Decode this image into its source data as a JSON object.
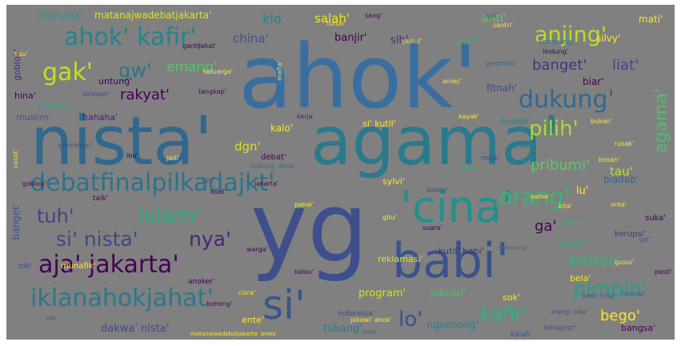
{
  "wordcloud": {
    "background": "#808080",
    "words": [
      {
        "text": "ahok'",
        "color": "#3b6ea0"
      },
      {
        "text": "nista'",
        "color": "#31688e"
      },
      {
        "text": "agama'",
        "color": "#2a7a8e"
      },
      {
        "text": "yg",
        "color": "#3e4f8c"
      },
      {
        "text": "'cina'",
        "color": "#21918c"
      },
      {
        "text": "babi'",
        "color": "#3b528b"
      },
      {
        "text": "si'",
        "color": "#39558c"
      },
      {
        "text": "debatfinalpilkadajkt'",
        "color": "#2c728e"
      },
      {
        "text": "iklanahokjahat'",
        "color": "#2a788e"
      },
      {
        "text": "ahok' kafir'",
        "color": "#25848e"
      },
      {
        "text": "aja' jakarta'",
        "color": "#440154"
      },
      {
        "text": "si' nista'",
        "color": "#3e4a89"
      },
      {
        "text": "tuh'",
        "color": "#414487"
      },
      {
        "text": "islam'",
        "color": "#29af7f"
      },
      {
        "text": "nya'",
        "color": "#482576"
      },
      {
        "text": "orang'",
        "color": "#35b779"
      },
      {
        "text": "pilih'",
        "color": "#a8db34"
      },
      {
        "text": "dukung'",
        "color": "#31688e"
      },
      {
        "text": "anjing'",
        "color": "#b5de2b"
      },
      {
        "text": "gak'",
        "color": "#c2df23"
      },
      {
        "text": "gw'",
        "color": "#2c728e"
      },
      {
        "text": "emang'",
        "color": "#52c569"
      },
      {
        "text": "rakyat'",
        "color": "#440154"
      },
      {
        "text": "banget'",
        "color": "#46327e"
      },
      {
        "text": "liat'",
        "color": "#3f4889"
      },
      {
        "text": "pribumi'",
        "color": "#5ec962"
      },
      {
        "text": "kristen'",
        "color": "#35b779"
      },
      {
        "text": "pimpin'",
        "color": "#1fa088"
      },
      {
        "text": "kafir'",
        "color": "#2db27d"
      },
      {
        "text": "bego'",
        "color": "#fde725"
      },
      {
        "text": "lo'",
        "color": "#3b528b"
      },
      {
        "text": "program'",
        "color": "#d8e219"
      },
      {
        "text": "jokowi'",
        "color": "#48c16e"
      },
      {
        "text": "ngomong'",
        "color": "#26828e"
      },
      {
        "text": "dakwa' nista'",
        "color": "#3e4a89"
      },
      {
        "text": "tukang'",
        "color": "#2a788e"
      },
      {
        "text": "salah'",
        "color": "#f2e51d"
      },
      {
        "text": "klo'",
        "color": "#26828e"
      },
      {
        "text": "china'",
        "color": "#3b528b"
      },
      {
        "text": "manusia'",
        "color": "#1f9a8a"
      },
      {
        "text": "matanajwadebatjakarta'",
        "color": "#dde318"
      },
      {
        "text": "sih'",
        "color": "#482878"
      },
      {
        "text": "anti'",
        "color": "#5ec962"
      },
      {
        "text": "banjir'",
        "color": "#440154"
      },
      {
        "text": "fitnah'",
        "color": "#3e4a89"
      },
      {
        "text": "biar'",
        "color": "#440154"
      },
      {
        "text": "dgn'",
        "color": "#d5e21a"
      },
      {
        "text": "kalo'",
        "color": "#fde725"
      },
      {
        "text": "debat'",
        "color": "#440154"
      },
      {
        "text": "tau'",
        "color": "#bddf26"
      },
      {
        "text": "lu'",
        "color": "#fde725"
      },
      {
        "text": "ga'",
        "color": "#440154"
      },
      {
        "text": "biadab'",
        "color": "#31688e"
      },
      {
        "text": "bela'",
        "color": "#fde725"
      },
      {
        "text": "reklamasi'",
        "color": "#dde318"
      },
      {
        "text": "kutil' babi'",
        "color": "#46327e"
      },
      {
        "text": "hina'",
        "color": "#440154"
      },
      {
        "text": "pilkada'",
        "color": "#22a884"
      },
      {
        "text": "hahaha'",
        "color": "#481f70"
      },
      {
        "text": "muslim'",
        "color": "#3b528b"
      },
      {
        "text": "si' kutil'",
        "color": "#fde725"
      },
      {
        "text": "bodoh'",
        "color": "#25848e"
      },
      {
        "text": "otak'",
        "color": "#2a788e"
      },
      {
        "text": "sylvi'",
        "color": "#fde725"
      },
      {
        "text": "munafik'",
        "color": "#fde725"
      },
      {
        "text": "indonesia'",
        "color": "#3e4a89"
      },
      {
        "text": "ente'",
        "color": "#fde725"
      },
      {
        "text": "bangsa'",
        "color": "#440154"
      },
      {
        "text": "suka'",
        "color": "#440154"
      },
      {
        "text": "islami'",
        "color": "#29af7f"
      },
      {
        "text": "korupsi'",
        "color": "#46327e"
      },
      {
        "text": "kampung'",
        "color": "#2a788e"
      },
      {
        "text": "silvy'",
        "color": "#fde725"
      },
      {
        "text": "mati'",
        "color": "#fde725"
      },
      {
        "text": "untung'",
        "color": "#440154"
      },
      {
        "text": "goblok'",
        "color": "#482878"
      },
      {
        "text": "agama'",
        "color": "#4ac16d"
      },
      {
        "text": "banget'",
        "color": "#3b528b"
      },
      {
        "text": "anak'",
        "color": "#2db27d"
      },
      {
        "text": "anoker'",
        "color": "#440154"
      },
      {
        "text": "koruptor'",
        "color": "#3e4a89"
      },
      {
        "text": "kalah'",
        "color": "#3b528b"
      },
      {
        "text": "tdk'",
        "color": "#3b528b"
      },
      {
        "text": "taik'",
        "color": "#440154"
      },
      {
        "text": "milik'",
        "color": "#3e4a89"
      },
      {
        "text": "onta'",
        "color": "#fde725"
      },
      {
        "text": "sok'",
        "color": "#fde725"
      },
      {
        "text": "matanajwadebatjakarta' anies'",
        "color": "#fde725"
      },
      {
        "text": "kerja'",
        "color": "#481f70"
      },
      {
        "text": "sampah'",
        "color": "#3e4a89"
      },
      {
        "text": "tangkap'",
        "color": "#440154"
      },
      {
        "text": "gerombol'",
        "color": "#31688e"
      },
      {
        "text": "hormat'",
        "color": "#31688e"
      },
      {
        "text": "cisra'",
        "color": "#fde725"
      },
      {
        "text": "santri'",
        "color": "#fde725"
      },
      {
        "text": "saya'",
        "color": "#2db27d"
      },
      {
        "text": "sang'",
        "color": "#440154"
      },
      {
        "text": "ganti'",
        "color": "#440154"
      },
      {
        "text": "pukul'",
        "color": "#fde725"
      },
      {
        "text": "lindung'",
        "color": "#440154"
      },
      {
        "text": "keluarga'",
        "color": "#fde725"
      },
      {
        "text": "jahat'",
        "color": "#440154"
      },
      {
        "text": "kau'",
        "color": "#fde725"
      },
      {
        "text": "kpk'",
        "color": "#31688e"
      },
      {
        "text": "mafia'",
        "color": "#fde725"
      },
      {
        "text": "suara'",
        "color": "#440154"
      },
      {
        "text": "spt'",
        "color": "#3e4a89"
      },
      {
        "text": "turun'",
        "color": "#fde725"
      },
      {
        "text": "agama'",
        "color": "#35b779"
      },
      {
        "text": "kayak'",
        "color": "#fde725"
      },
      {
        "text": "rusak'",
        "color": "#fde725"
      },
      {
        "text": "bilang'",
        "color": "#3e4a89"
      },
      {
        "text": "cocot'",
        "color": "#fde725"
      },
      {
        "text": "warga'",
        "color": "#440154"
      },
      {
        "text": "pakai'",
        "color": "#fde725"
      },
      {
        "text": "dukung' ahok'",
        "color": "#31688e"
      },
      {
        "text": "bukan'",
        "color": "#fde725"
      },
      {
        "text": "pemimpin'",
        "color": "#3e4a89"
      },
      {
        "text": "jadi'",
        "color": "#fde725"
      },
      {
        "text": "ibu'",
        "color": "#440154"
      },
      {
        "text": "kita'",
        "color": "#fde725"
      },
      {
        "text": "manuver'",
        "color": "#31688e"
      },
      {
        "text": "orang' cina'",
        "color": "#3b528b"
      },
      {
        "text": "gusur'",
        "color": "#fde725"
      },
      {
        "text": "goblog'",
        "color": "#440154"
      },
      {
        "text": "bosan'",
        "color": "#fde725"
      },
      {
        "text": "pasti'",
        "color": "#440154"
      },
      {
        "text": "nih'",
        "color": "#3b528b"
      },
      {
        "text": "gitu'",
        "color": "#fde725"
      },
      {
        "text": "kuat'",
        "color": "#440154"
      },
      {
        "text": "anies'",
        "color": "#fde725"
      },
      {
        "text": "jakarta'",
        "color": "#440154"
      },
      {
        "text": "jgn'",
        "color": "#3b528b"
      },
      {
        "text": "bisa'",
        "color": "#31688e"
      },
      {
        "text": "kalau'",
        "color": "#440154"
      },
      {
        "text": "sama'",
        "color": "#fde725"
      },
      {
        "text": "bohong'",
        "color": "#440154"
      },
      {
        "text": "babi' cina'",
        "color": "#3b528b"
      },
      {
        "text": "jokowi' ahok'",
        "color": "#fde725"
      }
    ]
  }
}
